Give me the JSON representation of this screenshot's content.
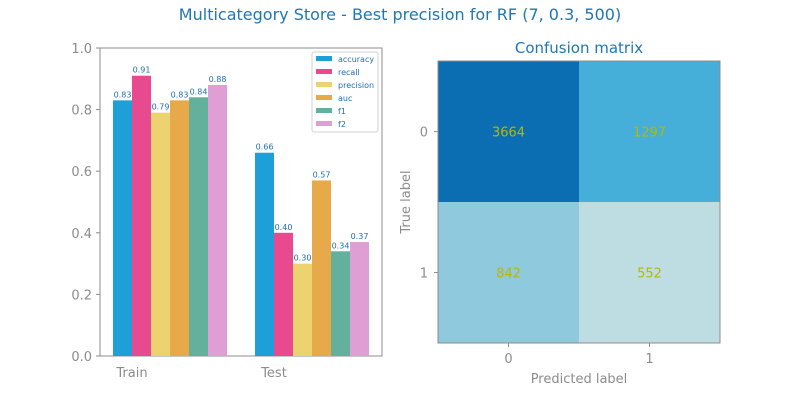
{
  "title": "Multicategory Store - Best precision for RF (7, 0.3, 500)",
  "colors": {
    "title": "#1f77b4",
    "axis": "#8c8c8c",
    "label": "#1f6fb4",
    "cell_text": "#b8b800"
  },
  "chart_data": [
    {
      "type": "bar",
      "title": "",
      "xlabel": "",
      "ylabel": "",
      "categories": [
        "Train",
        "Test"
      ],
      "ylim": [
        0,
        1.0
      ],
      "yticks": [
        "0.0",
        "0.2",
        "0.4",
        "0.6",
        "0.8",
        "1.0"
      ],
      "legend": "top-right",
      "series": [
        {
          "name": "accuracy",
          "color": "#1f9fd8",
          "values": [
            0.83,
            0.66
          ],
          "labels": [
            "0.83",
            "0.66"
          ]
        },
        {
          "name": "recall",
          "color": "#e84a8f",
          "values": [
            0.91,
            0.4
          ],
          "labels": [
            "0.91",
            "0.40"
          ]
        },
        {
          "name": "precision",
          "color": "#ecd370",
          "values": [
            0.79,
            0.3
          ],
          "labels": [
            "0.79",
            "0.30"
          ]
        },
        {
          "name": "auc",
          "color": "#e8a94a",
          "values": [
            0.83,
            0.57
          ],
          "labels": [
            "0.83",
            "0.57"
          ]
        },
        {
          "name": "f1",
          "color": "#63b19d",
          "values": [
            0.84,
            0.34
          ],
          "labels": [
            "0.84",
            "0.34"
          ]
        },
        {
          "name": "f2",
          "color": "#df9fd5",
          "values": [
            0.88,
            0.37
          ],
          "labels": [
            "0.88",
            "0.37"
          ]
        }
      ]
    },
    {
      "type": "heatmap",
      "title": "Confusion matrix",
      "xlabel": "Predicted label",
      "ylabel": "True label",
      "x_categories": [
        "0",
        "1"
      ],
      "y_categories": [
        "0",
        "1"
      ],
      "values": [
        [
          3664,
          1297
        ],
        [
          842,
          552
        ]
      ],
      "cell_labels": [
        [
          "3664",
          "1297"
        ],
        [
          "842",
          "552"
        ]
      ],
      "cell_colors": [
        [
          "#0b6eb3",
          "#45aed9"
        ],
        [
          "#8ec9dd",
          "#bddde2"
        ]
      ]
    }
  ]
}
